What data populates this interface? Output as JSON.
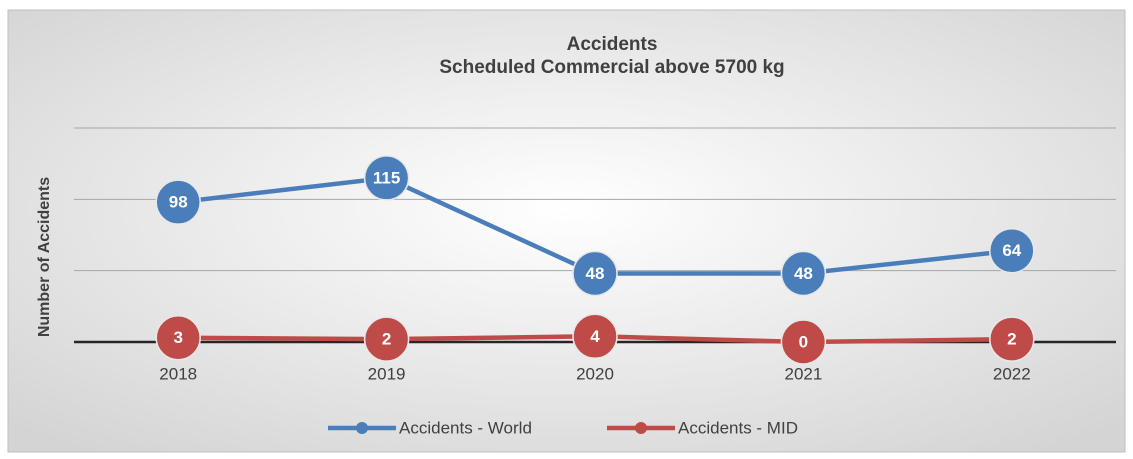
{
  "chart_data": {
    "type": "line",
    "title": "Accidents",
    "subtitle": "Scheduled Commercial above 5700 kg",
    "y_label": "Number of Accidents",
    "categories": [
      "2018",
      "2019",
      "2020",
      "2021",
      "2022"
    ],
    "series": [
      {
        "name": "Accidents - World",
        "color": "#4a7ebb",
        "values": [
          98,
          115,
          48,
          48,
          64
        ]
      },
      {
        "name": "Accidents - MID",
        "color": "#be4b48",
        "values": [
          3,
          2,
          4,
          0,
          2
        ]
      }
    ],
    "ylim": [
      0,
      150
    ],
    "yticks": [
      0,
      50,
      100,
      150
    ],
    "grid": true,
    "legend": "bottom"
  }
}
